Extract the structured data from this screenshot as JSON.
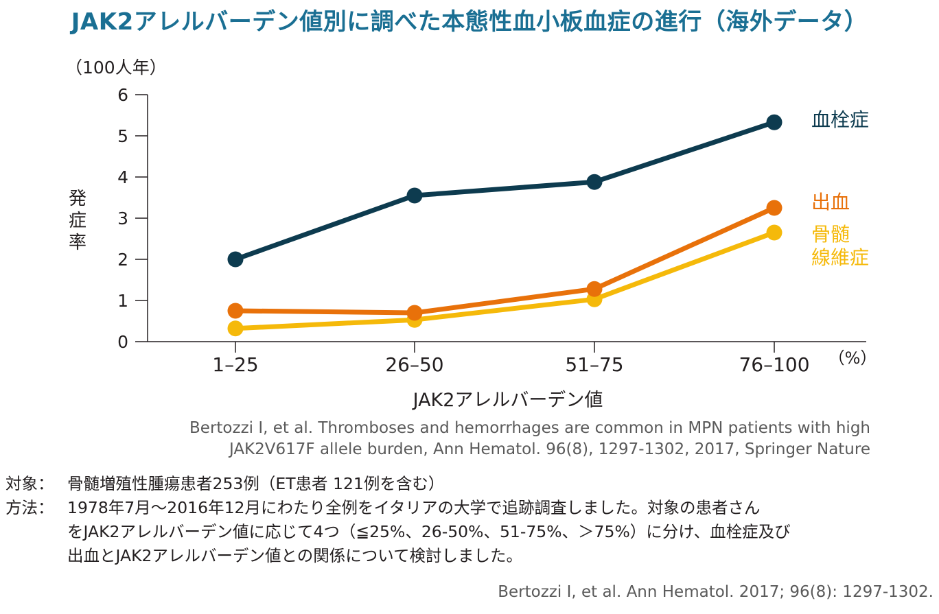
{
  "title": "JAK2アレルバーデン値別に調べた本態性血小板血症の進行（海外データ）",
  "chart_data": {
    "type": "line",
    "title": "JAK2アレルバーデン値別に調べた本態性血小板血症の進行（海外データ）",
    "ylabel": "発症率",
    "yunit": "（100人年）",
    "xlabel": "JAK2アレルバーデン値",
    "xunit": "（%）",
    "categories": [
      "1–25",
      "26–50",
      "51–75",
      "76–100"
    ],
    "ylim": [
      0,
      6
    ],
    "yticks": [
      "0",
      "1",
      "2",
      "3",
      "4",
      "5",
      "6"
    ],
    "grid": false,
    "legend": "right",
    "series": [
      {
        "name": "血栓症",
        "values": [
          2.0,
          3.55,
          3.88,
          5.33
        ],
        "color": "#0d3b4f"
      },
      {
        "name": "出血",
        "values": [
          0.75,
          0.7,
          1.28,
          3.25
        ],
        "color": "#e8710a"
      },
      {
        "name": "骨髄線維症",
        "name_lines": [
          "骨髄",
          "線維症"
        ],
        "values": [
          0.32,
          0.53,
          1.03,
          2.65
        ],
        "color": "#f5b90a"
      }
    ]
  },
  "citation": {
    "line1": "Bertozzi I, et al. Thromboses and hemorrhages are common in MPN patients with high",
    "line2": "JAK2V617F allele burden, Ann Hematol. 96(8), 1297-1302, 2017, Springer Nature"
  },
  "notes": {
    "subject_label": "対象：",
    "subject_text": "骨髄増殖性腫瘍患者253例（ET患者 121例を含む）",
    "method_label": "方法：",
    "method_lines": [
      "1978年7月～2016年12月にわたり全例をイタリアの大学で追跡調査しました。対象の患者さん",
      "をJAK2アレルバーデン値に応じて4つ（≦25%、26-50%、51-75%、＞75%）に分け、血栓症及び",
      "出血とJAK2アレルバーデン値との関係について検討しました。"
    ]
  },
  "reference": "Bertozzi I, et al. Ann Hematol. 2017; 96(8): 1297-1302."
}
